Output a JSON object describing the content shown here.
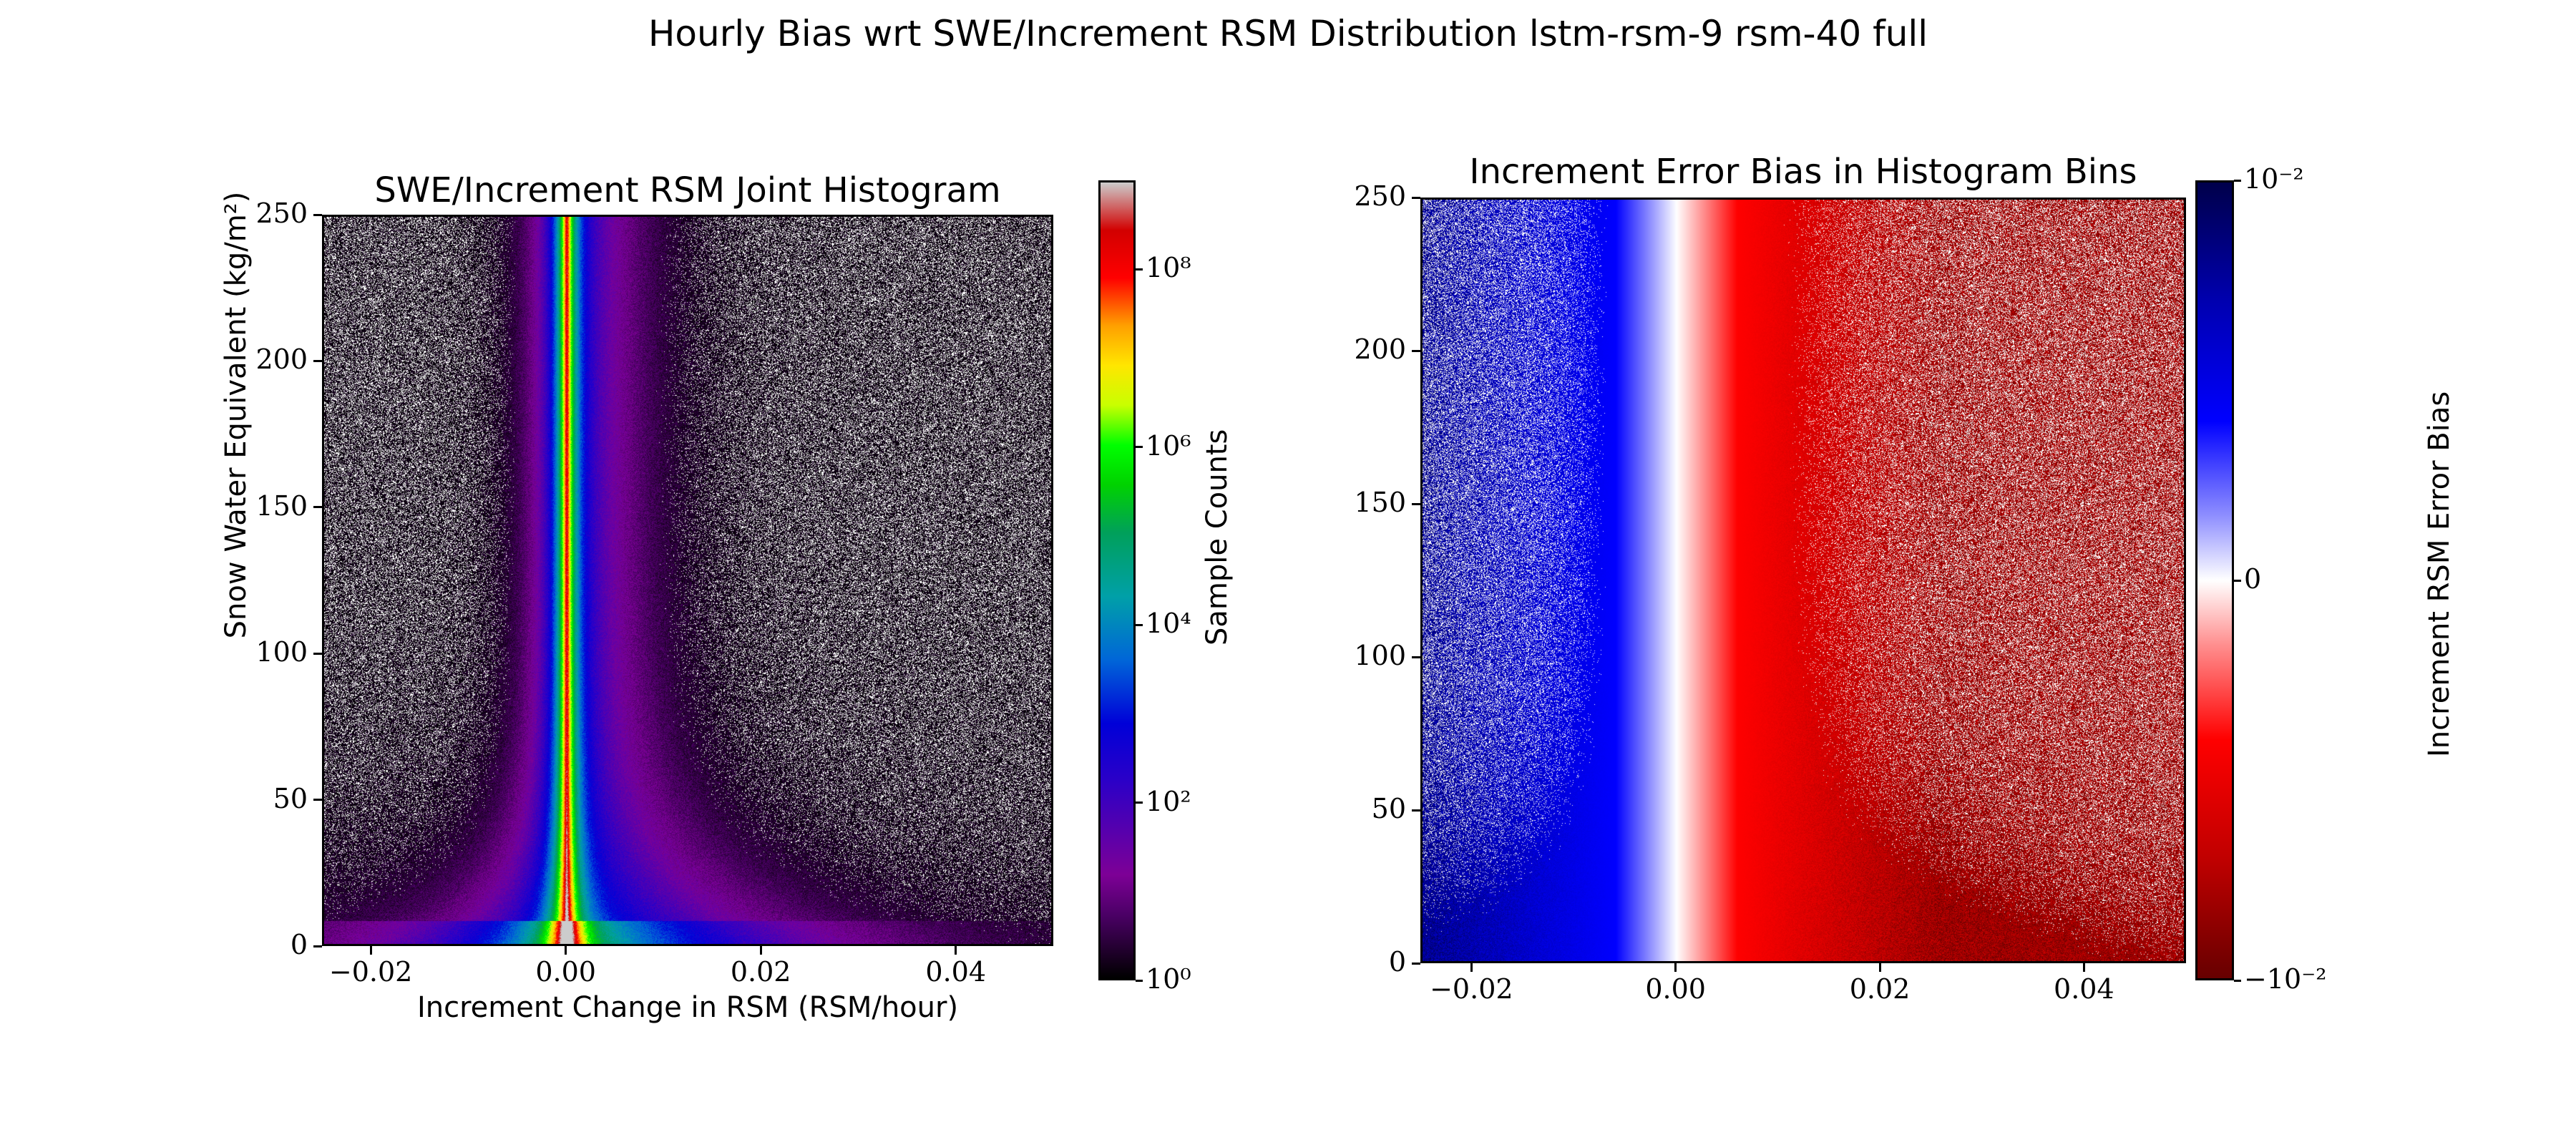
{
  "figure": {
    "title": "Hourly Bias wrt SWE/Increment RSM Distribution lstm-rsm-9 rsm-40 full"
  },
  "chart_data": [
    {
      "type": "heatmap",
      "title": "SWE/Increment RSM Joint Histogram",
      "xlabel": "Increment Change in RSM (RSM/hour)",
      "ylabel": "Snow Water Equivalent (kg/m²)",
      "xlim": [
        -0.025,
        0.05
      ],
      "ylim": [
        0,
        250
      ],
      "xticks": [
        -0.02,
        0.0,
        0.02,
        0.04
      ],
      "xtick_labels": [
        "−0.02",
        "0.00",
        "0.02",
        "0.04"
      ],
      "yticks": [
        0,
        50,
        100,
        150,
        200,
        250
      ],
      "ytick_labels": [
        "0",
        "50",
        "100",
        "150",
        "200",
        "250"
      ],
      "colorbar": {
        "label": "Sample Counts",
        "scale": "log",
        "range": [
          1,
          1000000000
        ],
        "tick_values": [
          1,
          100,
          10000,
          1000000,
          100000000
        ],
        "tick_labels": [
          "10⁰",
          "10²",
          "10⁴",
          "10⁶",
          "10⁸"
        ],
        "colormap": "nipy_spectral"
      },
      "distribution": "peak at x = 0.00 (~10^6 counts), spreading wider at low SWE, right tail to 0.05"
    },
    {
      "type": "heatmap",
      "title": "Increment Error Bias in Histogram Bins",
      "xlabel": "",
      "ylabel": "",
      "xlim": [
        -0.025,
        0.05
      ],
      "ylim": [
        0,
        250
      ],
      "xticks": [
        -0.02,
        0.0,
        0.02,
        0.04
      ],
      "xtick_labels": [
        "−0.02",
        "0.00",
        "0.02",
        "0.04"
      ],
      "yticks": [
        0,
        50,
        100,
        150,
        200,
        250
      ],
      "ytick_labels": [
        "0",
        "50",
        "100",
        "150",
        "200",
        "250"
      ],
      "colorbar": {
        "label": "Increment RSM Error Bias",
        "scale": "symlog",
        "range": [
          -0.01,
          0.01
        ],
        "tick_values": [
          0.01,
          0,
          -0.01
        ],
        "tick_labels": [
          "10⁻²",
          "0",
          "−10⁻²"
        ],
        "colormap": "seismic_r"
      },
      "distribution": "positive bias (blue) for x < 0, near zero at x = 0, negative bias (red) for x > 0"
    }
  ],
  "colors": {
    "positive_bias": "#0000ff",
    "negative_bias": "#ff0000",
    "low_count": "#7d0096",
    "peak_count": "#00d200"
  }
}
